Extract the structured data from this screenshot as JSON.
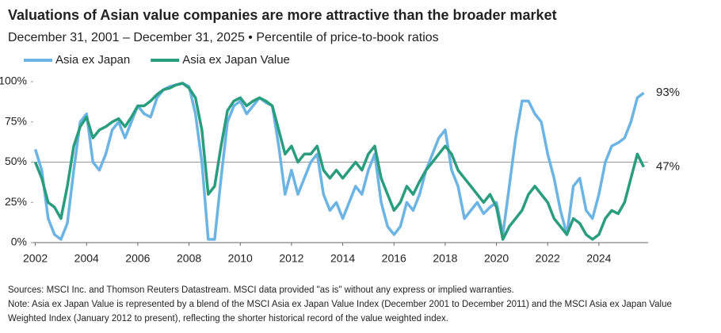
{
  "chart_data": {
    "type": "line",
    "title": "Valuations of Asian value companies are more attractive than the broader market",
    "subtitle": "December 31, 2001 – December 31, 2025 • Percentile of price-to-book ratios",
    "x": [
      2002,
      2002.25,
      2002.5,
      2002.75,
      2003,
      2003.25,
      2003.5,
      2003.75,
      2004,
      2004.25,
      2004.5,
      2004.75,
      2005,
      2005.25,
      2005.5,
      2005.75,
      2006,
      2006.25,
      2006.5,
      2006.75,
      2007,
      2007.25,
      2007.5,
      2007.75,
      2008,
      2008.25,
      2008.5,
      2008.75,
      2009,
      2009.25,
      2009.5,
      2009.75,
      2010,
      2010.25,
      2010.5,
      2010.75,
      2011,
      2011.25,
      2011.5,
      2011.75,
      2012,
      2012.25,
      2012.5,
      2012.75,
      2013,
      2013.25,
      2013.5,
      2013.75,
      2014,
      2014.25,
      2014.5,
      2014.75,
      2015,
      2015.25,
      2015.5,
      2015.75,
      2016,
      2016.25,
      2016.5,
      2016.75,
      2017,
      2017.25,
      2017.5,
      2017.75,
      2018,
      2018.25,
      2018.5,
      2018.75,
      2019,
      2019.25,
      2019.5,
      2019.75,
      2020,
      2020.25,
      2020.5,
      2020.75,
      2021,
      2021.25,
      2021.5,
      2021.75,
      2022,
      2022.25,
      2022.5,
      2022.75,
      2023,
      2023.25,
      2023.5,
      2023.75,
      2024,
      2024.25,
      2024.5,
      2024.75,
      2025,
      2025.25,
      2025.5,
      2025.75
    ],
    "series": [
      {
        "name": "Asia ex Japan",
        "color": "#6cb4e4",
        "end_label": "93%",
        "values": [
          58,
          45,
          15,
          5,
          2,
          12,
          45,
          75,
          80,
          50,
          45,
          55,
          70,
          75,
          65,
          75,
          85,
          80,
          78,
          90,
          95,
          97,
          98,
          99,
          97,
          80,
          50,
          2,
          2,
          40,
          75,
          85,
          88,
          80,
          85,
          90,
          87,
          85,
          60,
          30,
          45,
          30,
          40,
          50,
          55,
          30,
          20,
          25,
          15,
          25,
          35,
          30,
          45,
          55,
          25,
          10,
          5,
          10,
          25,
          20,
          30,
          45,
          55,
          65,
          70,
          45,
          35,
          15,
          20,
          25,
          18,
          22,
          25,
          5,
          35,
          65,
          88,
          88,
          80,
          75,
          55,
          40,
          20,
          5,
          35,
          40,
          20,
          15,
          30,
          50,
          60,
          62,
          65,
          75,
          90,
          93
        ]
      },
      {
        "name": "Asia ex Japan Value",
        "color": "#2a9d7f",
        "end_label": "47%",
        "values": [
          50,
          40,
          25,
          22,
          15,
          35,
          60,
          72,
          78,
          65,
          70,
          72,
          75,
          77,
          72,
          78,
          85,
          85,
          88,
          92,
          95,
          96,
          98,
          99,
          96,
          90,
          70,
          30,
          35,
          60,
          82,
          88,
          90,
          85,
          88,
          90,
          88,
          85,
          70,
          55,
          60,
          50,
          55,
          55,
          60,
          45,
          40,
          45,
          40,
          45,
          50,
          45,
          55,
          60,
          40,
          30,
          20,
          25,
          35,
          30,
          38,
          45,
          50,
          55,
          60,
          55,
          45,
          40,
          35,
          30,
          25,
          30,
          22,
          2,
          10,
          15,
          20,
          30,
          35,
          30,
          25,
          15,
          10,
          5,
          15,
          12,
          5,
          2,
          5,
          15,
          20,
          18,
          25,
          40,
          55,
          47
        ]
      }
    ],
    "xlim": [
      2001.92,
      2025.92
    ],
    "xticks": [
      2002,
      2004,
      2006,
      2008,
      2010,
      2012,
      2014,
      2016,
      2018,
      2020,
      2022,
      2024
    ],
    "ylim": [
      0,
      100
    ],
    "yticks": [
      {
        "value": 0,
        "label": "0%"
      },
      {
        "value": 25,
        "label": "25%"
      },
      {
        "value": 50,
        "label": "50%"
      },
      {
        "value": 75,
        "label": "75%"
      },
      {
        "value": 100,
        "label": "100%"
      }
    ],
    "reference_line": 50,
    "sources": "Sources: MSCI Inc. and Thomson Reuters Datastream. MSCI data provided \"as is\" without any express or implied warranties.",
    "note": "Note: Asia ex Japan Value is represented by a blend of the MSCI Asia ex Japan Value Index (December 2001 to December 2011) and the MSCI Asia ex Japan Value Weighted Index (January 2012 to present), reflecting the shorter historical record of the value weighted index."
  }
}
